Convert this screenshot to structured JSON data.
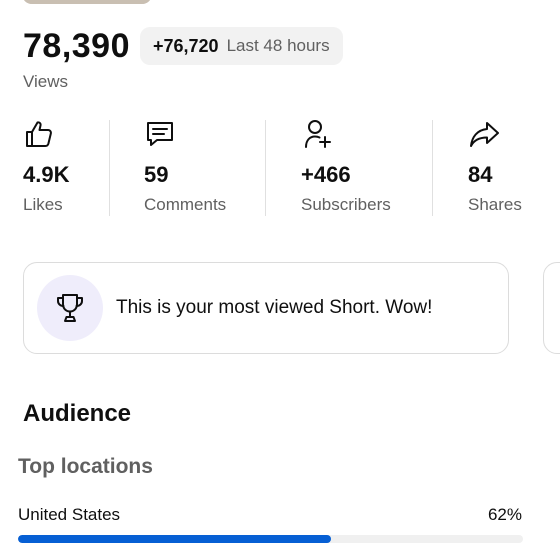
{
  "views": {
    "count": "78,390",
    "delta": "+76,720",
    "period": "Last 48 hours",
    "label": "Views"
  },
  "stats": [
    {
      "icon": "thumbs-up-icon",
      "value": "4.9K",
      "label": "Likes"
    },
    {
      "icon": "comment-icon",
      "value": "59",
      "label": "Comments"
    },
    {
      "icon": "add-person-icon",
      "value": "+466",
      "label": "Subscribers"
    },
    {
      "icon": "share-icon",
      "value": "84",
      "label": "Shares"
    }
  ],
  "achievement": {
    "icon": "trophy-icon",
    "text": "This is your most viewed Short. Wow!"
  },
  "audience": {
    "title": "Audience",
    "top_locations_title": "Top locations",
    "locations": [
      {
        "name": "United States",
        "percent_label": "62%",
        "percent": 62
      }
    ]
  },
  "colors": {
    "progress": "#065fd4",
    "trophy_bg": "#efedfb"
  }
}
